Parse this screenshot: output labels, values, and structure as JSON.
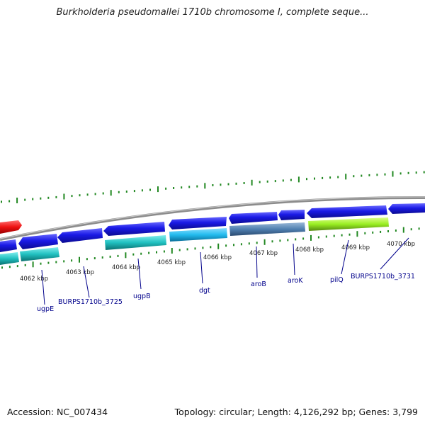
{
  "title": "Burkholderia pseudomallei 1710b chromosome I, complete seque...",
  "footer": {
    "accession": "Accession: NC_007434",
    "summary": "Topology: circular; Length: 4,126,292 bp; Genes: 3,799"
  },
  "tick_labels": [
    "4062 kbp",
    "4063 kbp",
    "4064 kbp",
    "4065 kbp",
    "4066 kbp",
    "4067 kbp",
    "4068 kbp",
    "4069 kbp",
    "4070 kbp"
  ],
  "gene_labels": [
    "ugpE",
    "BURPS1710b_3725",
    "ugpB",
    "dgt",
    "aroB",
    "aroK",
    "pilQ",
    "BURPS1710b_3731"
  ],
  "colors": {
    "backbone": "#8c8c8c",
    "cds_arrow": "#1a1ae6",
    "red_feature": "#ee1111",
    "teal_feature": "#20c0c0",
    "sky_feature": "#22bbee",
    "steel_feature": "#5080b0",
    "lime_feature": "#99ee22",
    "tick": "#228822",
    "gene_label": "#00008b"
  }
}
